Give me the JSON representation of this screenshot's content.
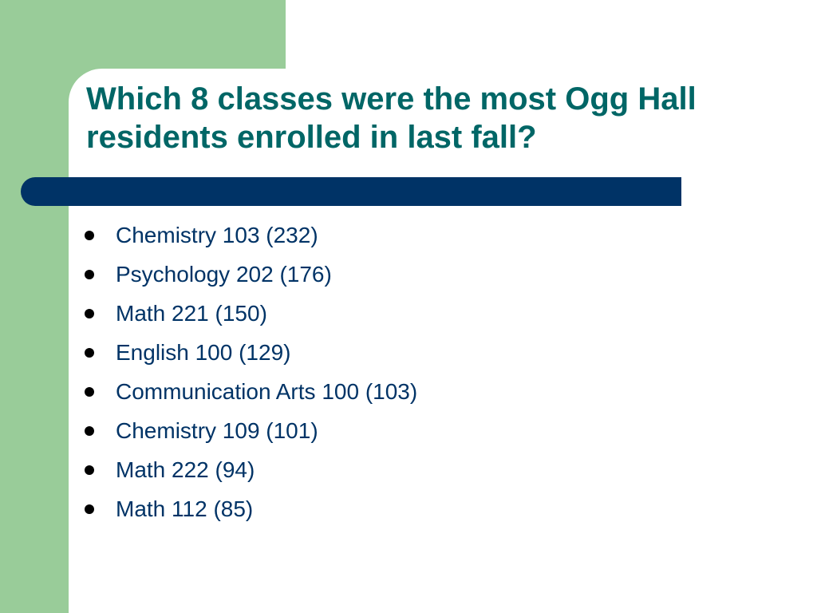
{
  "slide": {
    "title": "Which 8 classes were the most Ogg Hall residents enrolled in last fall?",
    "bullets": [
      "Chemistry 103 (232)",
      "Psychology 202 (176)",
      "Math 221 (150)",
      "English 100 (129)",
      "Communication Arts 100 (103)",
      "Chemistry 109 (101)",
      "Math 222 (94)",
      "Math 112 (85)"
    ]
  },
  "colors": {
    "title": "#006666",
    "bullet_text": "#003366",
    "accent_green": "#99cc99",
    "accent_navy": "#003366"
  }
}
